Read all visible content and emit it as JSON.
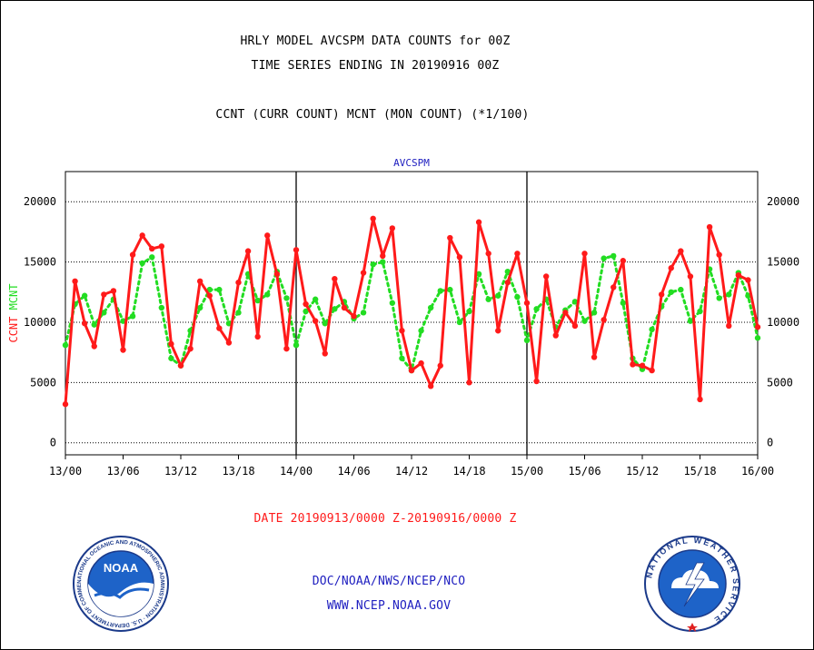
{
  "header": {
    "title_line1": "HRLY MODEL AVCSPM DATA COUNTS for 00Z",
    "title_line2": "TIME SERIES ENDING IN 20190916 00Z",
    "subtitle": "CCNT (CURR COUNT) MCNT (MON COUNT) (*1/100)"
  },
  "colors": {
    "ccnt": "#ff1a1a",
    "mcnt": "#22dd22",
    "blue": "#2020c0",
    "grid": "#000000"
  },
  "chart_data": {
    "type": "line",
    "title": "AVCSPM",
    "ylabel_left": "CCNT",
    "ylabel_right": "MCNT",
    "xlabel": "DATE 20190913/0000 Z-20190916/0000 Z",
    "ylim": [
      -1000,
      22500
    ],
    "xlim": [
      0,
      72
    ],
    "grid": true,
    "yticks": [
      0,
      5000,
      10000,
      15000,
      20000
    ],
    "ytick_labels": [
      "0",
      "5000",
      "10000",
      "15000",
      "20000"
    ],
    "xtick_positions": [
      0,
      6,
      12,
      18,
      24,
      30,
      36,
      42,
      48,
      54,
      60,
      66,
      72
    ],
    "xtick_labels": [
      "13/00",
      "13/06",
      "13/12",
      "13/18",
      "14/00",
      "14/06",
      "14/12",
      "14/18",
      "15/00",
      "15/06",
      "15/12",
      "15/18",
      "16/00"
    ],
    "day_dividers": [
      24,
      48
    ],
    "series": [
      {
        "name": "CCNT",
        "x": [
          0,
          1,
          2,
          3,
          4,
          5,
          6,
          7,
          8,
          9,
          10,
          11,
          12,
          13,
          14,
          15,
          16,
          17,
          18,
          19,
          20,
          21,
          22,
          23,
          24,
          25,
          26,
          27,
          28,
          29,
          30,
          31,
          32,
          33,
          34,
          35,
          36,
          37,
          38,
          39,
          40,
          41,
          42,
          43,
          44,
          45,
          46,
          47,
          48,
          49,
          50,
          51,
          52,
          53,
          54,
          55,
          56,
          57,
          58,
          59,
          60,
          61,
          62,
          63,
          64,
          65,
          66,
          67,
          68,
          69,
          70,
          71,
          72
        ],
        "values": [
          3200,
          13400,
          9900,
          8000,
          12300,
          12600,
          7700,
          15600,
          17200,
          16100,
          16300,
          8200,
          6400,
          7800,
          13400,
          12200,
          9500,
          8300,
          13300,
          15900,
          8800,
          17200,
          14000,
          7800,
          16000,
          11500,
          10100,
          7400,
          13600,
          11200,
          10500,
          14100,
          18600,
          15500,
          17800,
          9300,
          6000,
          6600,
          4700,
          6400,
          17000,
          15400,
          5000,
          18300,
          15700,
          9300,
          13300,
          15700,
          11600,
          5100,
          13800,
          8900,
          10800,
          9700,
          15700,
          7100,
          10200,
          12900,
          15100,
          6500,
          6400,
          6000,
          12300,
          14500,
          15900,
          13800,
          3600,
          17900,
          15600,
          9700,
          13900,
          13500,
          9600
        ]
      },
      {
        "name": "MCNT",
        "x": [
          0,
          1,
          2,
          3,
          4,
          5,
          6,
          7,
          8,
          9,
          10,
          11,
          12,
          13,
          14,
          15,
          16,
          17,
          18,
          19,
          20,
          21,
          22,
          23,
          24,
          25,
          26,
          27,
          28,
          29,
          30,
          31,
          32,
          33,
          34,
          35,
          36,
          37,
          38,
          39,
          40,
          41,
          42,
          43,
          44,
          45,
          46,
          47,
          48,
          49,
          50,
          51,
          52,
          53,
          54,
          55,
          56,
          57,
          58,
          59,
          60,
          61,
          62,
          63,
          64,
          65,
          66,
          67,
          68,
          69,
          70,
          71,
          72
        ],
        "values": [
          8100,
          11500,
          12200,
          9800,
          10800,
          11900,
          10100,
          10500,
          14900,
          15400,
          11200,
          7000,
          6400,
          9300,
          11200,
          12700,
          12700,
          9900,
          10800,
          14000,
          11800,
          12300,
          14200,
          12000,
          8100,
          10900,
          11900,
          9900,
          11100,
          11700,
          10300,
          10800,
          14800,
          15000,
          11600,
          7000,
          6000,
          9300,
          11200,
          12600,
          12700,
          10000,
          10900,
          14000,
          11900,
          12200,
          14200,
          12100,
          8500,
          11100,
          11900,
          9600,
          11000,
          11700,
          10100,
          10800,
          15300,
          15500,
          11600,
          7000,
          6100,
          9400,
          11300,
          12500,
          12700,
          10100,
          10900,
          14400,
          12000,
          12300,
          14100,
          12200,
          8700
        ]
      }
    ]
  },
  "footer": {
    "line1": "DOC/NOAA/NWS/NCEP/NCO",
    "line2": "WWW.NCEP.NOAA.GOV"
  },
  "logos": {
    "noaa": {
      "icon": "noaa-logo",
      "center_text": "NOAA",
      "ring_text": "NATIONAL OCEANIC AND ATMOSPHERIC ADMINISTRATION · U.S. DEPARTMENT OF COMMERCE"
    },
    "nws": {
      "icon": "nws-logo",
      "ring_text": "NATIONAL WEATHER SERVICE"
    }
  }
}
